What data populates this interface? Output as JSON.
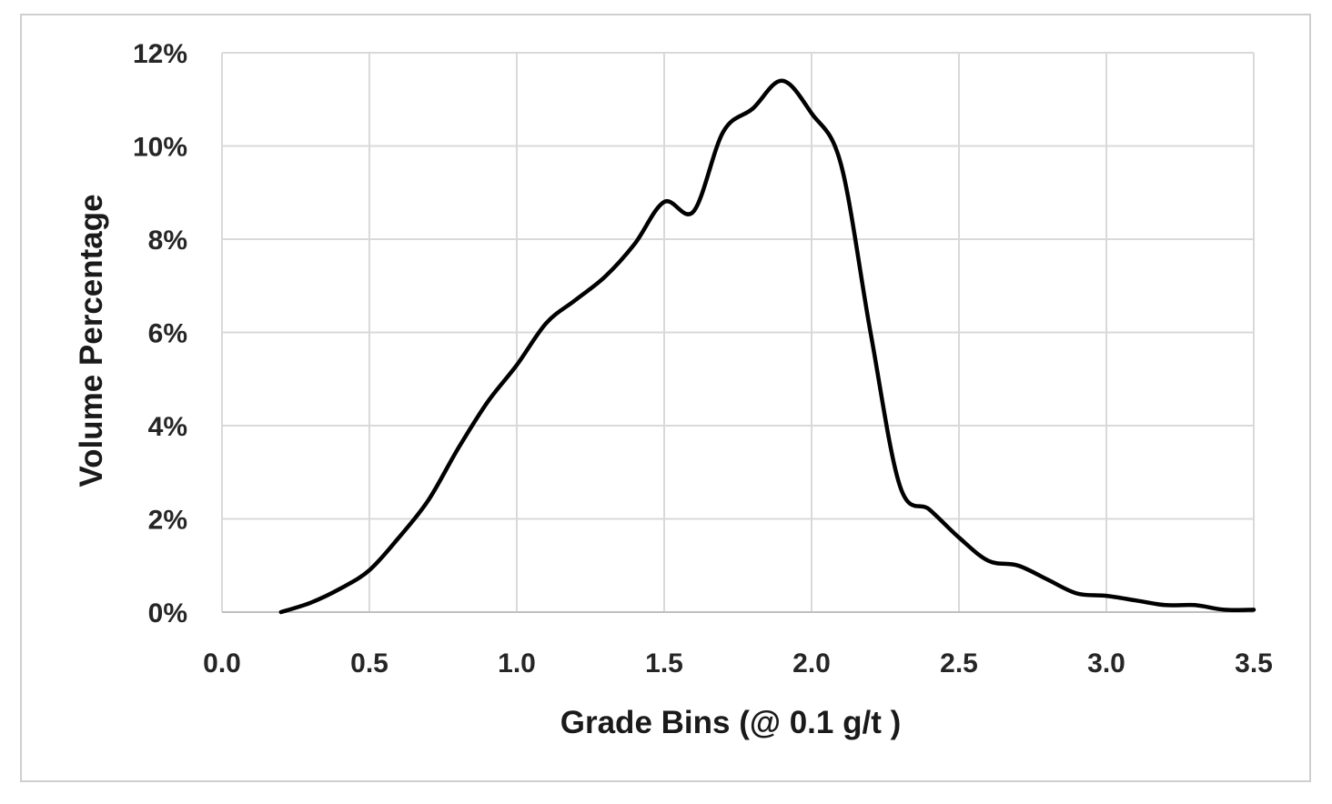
{
  "chart_data": {
    "type": "line",
    "title": "",
    "xlabel": "Grade Bins (@ 0.1 g/t )",
    "ylabel": "Volume Percentage",
    "xlim": [
      0,
      3.5
    ],
    "ylim": [
      0,
      12
    ],
    "x_ticks": [
      "0.0",
      "0.5",
      "1.0",
      "1.5",
      "2.0",
      "2.5",
      "3.0",
      "3.5"
    ],
    "y_ticks": [
      "0%",
      "2%",
      "4%",
      "6%",
      "8%",
      "10%",
      "12%"
    ],
    "grid": true,
    "legend": "none",
    "line_color": "#000000",
    "series": [
      {
        "x": [
          0.2,
          0.3,
          0.4,
          0.5,
          0.6,
          0.7,
          0.8,
          0.9,
          1.0,
          1.1,
          1.2,
          1.3,
          1.4,
          1.5,
          1.6,
          1.7,
          1.8,
          1.9,
          2.0,
          2.1,
          2.2,
          2.3,
          2.4,
          2.5,
          2.6,
          2.7,
          2.8,
          2.9,
          3.0,
          3.1,
          3.2,
          3.3,
          3.4,
          3.5
        ],
        "values": [
          0.0,
          0.2,
          0.5,
          0.9,
          1.6,
          2.4,
          3.5,
          4.5,
          5.3,
          6.2,
          6.7,
          7.2,
          7.9,
          8.8,
          8.6,
          10.3,
          10.8,
          11.4,
          10.7,
          9.6,
          6.0,
          2.7,
          2.2,
          1.6,
          1.1,
          1.0,
          0.7,
          0.4,
          0.35,
          0.25,
          0.15,
          0.15,
          0.05,
          0.05
        ]
      }
    ]
  }
}
